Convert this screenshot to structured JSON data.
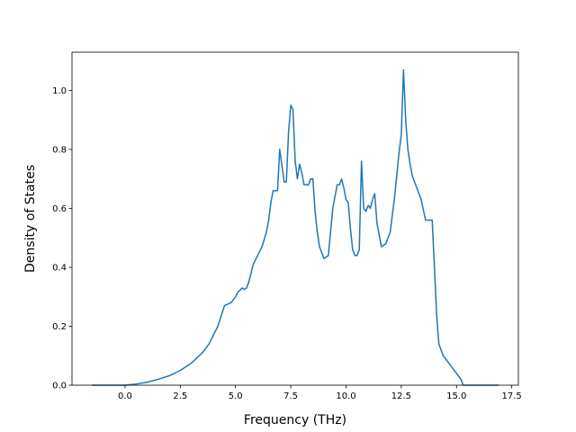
{
  "chart_data": {
    "type": "line",
    "title": "",
    "xlabel": "Frequency (THz)",
    "ylabel": "Density of States",
    "xlim": [
      -2.4,
      17.8
    ],
    "ylim": [
      0.0,
      1.13
    ],
    "xticks": [
      0.0,
      2.5,
      5.0,
      7.5,
      10.0,
      12.5,
      15.0,
      17.5
    ],
    "xtick_labels": [
      "0.0",
      "2.5",
      "5.0",
      "7.5",
      "10.0",
      "12.5",
      "15.0",
      "17.5"
    ],
    "yticks": [
      0.0,
      0.2,
      0.4,
      0.6,
      0.8,
      1.0
    ],
    "ytick_labels": [
      "0.0",
      "0.2",
      "0.4",
      "0.6",
      "0.8",
      "1.0"
    ],
    "grid": false,
    "legend": "none",
    "series": [
      {
        "color": "#1f77b4",
        "x": [
          -1.5,
          0.0,
          0.5,
          1.0,
          1.5,
          2.0,
          2.5,
          3.0,
          3.5,
          3.8,
          4.0,
          4.2,
          4.5,
          4.8,
          5.0,
          5.1,
          5.3,
          5.4,
          5.5,
          5.6,
          5.8,
          6.0,
          6.2,
          6.4,
          6.5,
          6.6,
          6.7,
          6.8,
          6.9,
          7.0,
          7.2,
          7.3,
          7.4,
          7.5,
          7.6,
          7.7,
          7.8,
          7.9,
          8.0,
          8.1,
          8.2,
          8.3,
          8.4,
          8.5,
          8.6,
          8.7,
          8.8,
          9.0,
          9.2,
          9.4,
          9.6,
          9.7,
          9.8,
          9.9,
          10.0,
          10.1,
          10.2,
          10.3,
          10.4,
          10.5,
          10.6,
          10.7,
          10.8,
          10.9,
          11.0,
          11.1,
          11.2,
          11.3,
          11.4,
          11.5,
          11.6,
          11.8,
          12.0,
          12.2,
          12.4,
          12.5,
          12.6,
          12.7,
          12.8,
          12.9,
          13.0,
          13.2,
          13.4,
          13.6,
          13.8,
          13.9,
          14.0,
          14.1,
          14.2,
          14.4,
          14.6,
          14.8,
          15.0,
          15.2,
          15.3,
          15.5,
          16.0,
          16.9
        ],
        "y": [
          0.0,
          0.0,
          0.004,
          0.01,
          0.02,
          0.032,
          0.05,
          0.075,
          0.11,
          0.14,
          0.17,
          0.2,
          0.27,
          0.28,
          0.3,
          0.315,
          0.33,
          0.325,
          0.33,
          0.35,
          0.41,
          0.44,
          0.47,
          0.52,
          0.56,
          0.62,
          0.66,
          0.66,
          0.66,
          0.8,
          0.69,
          0.69,
          0.86,
          0.95,
          0.935,
          0.76,
          0.7,
          0.75,
          0.72,
          0.68,
          0.68,
          0.68,
          0.7,
          0.7,
          0.59,
          0.52,
          0.47,
          0.43,
          0.44,
          0.6,
          0.68,
          0.68,
          0.7,
          0.67,
          0.63,
          0.62,
          0.53,
          0.46,
          0.44,
          0.44,
          0.46,
          0.76,
          0.6,
          0.59,
          0.61,
          0.6,
          0.63,
          0.65,
          0.55,
          0.51,
          0.47,
          0.48,
          0.52,
          0.64,
          0.79,
          0.85,
          1.07,
          0.9,
          0.8,
          0.75,
          0.71,
          0.67,
          0.63,
          0.56,
          0.56,
          0.56,
          0.4,
          0.24,
          0.14,
          0.1,
          0.08,
          0.06,
          0.04,
          0.02,
          0.0,
          0.0,
          0.0,
          0.0
        ]
      }
    ]
  }
}
